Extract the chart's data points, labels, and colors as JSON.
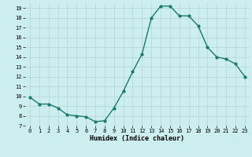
{
  "x": [
    0,
    1,
    2,
    3,
    4,
    5,
    6,
    7,
    8,
    9,
    10,
    11,
    12,
    13,
    14,
    15,
    16,
    17,
    18,
    19,
    20,
    21,
    22,
    23
  ],
  "y": [
    9.9,
    9.2,
    9.2,
    8.8,
    8.1,
    8.0,
    7.9,
    7.4,
    7.5,
    8.8,
    10.5,
    12.5,
    14.3,
    18.0,
    19.2,
    19.2,
    18.2,
    18.2,
    17.2,
    15.0,
    14.0,
    13.8,
    13.3,
    12.0
  ],
  "line_color": "#1a7a6e",
  "bg_color": "#cceeee",
  "grid_color": "#b8d8d8",
  "xlabel": "Humidex (Indice chaleur)",
  "xlim": [
    -0.5,
    23.5
  ],
  "ylim": [
    7,
    19.5
  ],
  "yticks": [
    7,
    8,
    9,
    10,
    11,
    12,
    13,
    14,
    15,
    16,
    17,
    18,
    19
  ],
  "xticks": [
    0,
    1,
    2,
    3,
    4,
    5,
    6,
    7,
    8,
    9,
    10,
    11,
    12,
    13,
    14,
    15,
    16,
    17,
    18,
    19,
    20,
    21,
    22,
    23
  ],
  "xtick_labels": [
    "0",
    "1",
    "2",
    "3",
    "4",
    "5",
    "6",
    "7",
    "8",
    "9",
    "10",
    "11",
    "12",
    "13",
    "14",
    "15",
    "16",
    "17",
    "18",
    "19",
    "20",
    "21",
    "22",
    "23"
  ],
  "tick_fontsize": 5,
  "xlabel_fontsize": 6,
  "marker_size": 2.0,
  "line_width": 1.0
}
